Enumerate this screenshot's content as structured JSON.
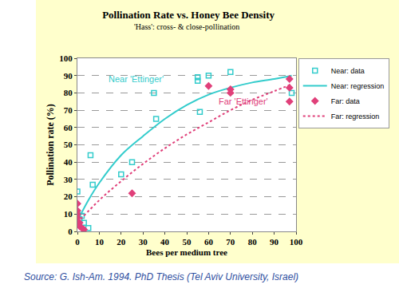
{
  "chart_data": {
    "type": "scatter",
    "title": "Pollination Rate vs. Honey Bee Density",
    "subtitle": "'Hass': cross- & close-pollination",
    "x_label": "Bees per medium tree",
    "y_label": "Pollination rate (%)",
    "xlim": [
      0,
      100
    ],
    "xticks": [
      0,
      10,
      20,
      30,
      40,
      50,
      60,
      70,
      80,
      90,
      100
    ],
    "ylim": [
      0,
      100
    ],
    "yticks": [
      0,
      10,
      20,
      30,
      40,
      50,
      60,
      70,
      80,
      90,
      100
    ],
    "grid": true,
    "legend": "right",
    "series": [
      {
        "name": "Near: data",
        "type": "scatter",
        "color": "#33cccc",
        "marker": "square-open",
        "x": [
          0,
          0,
          1,
          2,
          3,
          5,
          6,
          7,
          20,
          25,
          35,
          36,
          55,
          55,
          56,
          60,
          70,
          98
        ],
        "values": [
          23,
          10,
          7,
          9,
          5,
          2,
          44,
          27,
          33,
          40,
          80,
          65,
          87,
          89,
          69,
          90,
          92,
          80
        ]
      },
      {
        "name": "Near: regression",
        "type": "line",
        "color": "#33cccc",
        "line_style": "solid",
        "x": [
          0,
          5,
          10,
          20,
          30,
          40,
          50,
          60,
          70,
          80,
          90,
          98
        ],
        "values": [
          6,
          18,
          28,
          44,
          55,
          65,
          73,
          79,
          83,
          86,
          88,
          90
        ]
      },
      {
        "name": "Far: data",
        "type": "scatter",
        "color": "#e0407a",
        "marker": "diamond",
        "x": [
          0,
          0,
          0,
          0,
          1,
          1,
          2,
          3,
          25,
          60,
          70,
          70,
          97,
          97,
          97
        ],
        "values": [
          16,
          12,
          10,
          8,
          5,
          3,
          2,
          1,
          22,
          84,
          82,
          80,
          88,
          83,
          75
        ]
      },
      {
        "name": "Far: regression",
        "type": "line",
        "color": "#e0407a",
        "line_style": "dotted",
        "x": [
          0,
          10,
          20,
          30,
          40,
          50,
          60,
          70,
          80,
          90,
          98
        ],
        "values": [
          5,
          18,
          29,
          39,
          48,
          56,
          63,
          70,
          76,
          81,
          85
        ]
      }
    ],
    "annotations": [
      {
        "text": "Near 'Ettinger'",
        "x": 27,
        "y": 88,
        "color": "#33cccc"
      },
      {
        "text": "Far 'Ettinger'",
        "x": 76,
        "y": 75,
        "color": "#e0407a"
      }
    ],
    "source": "Source: G. Ish-Am. 1994. PhD Thesis (Tel Aviv University, Israel)"
  }
}
